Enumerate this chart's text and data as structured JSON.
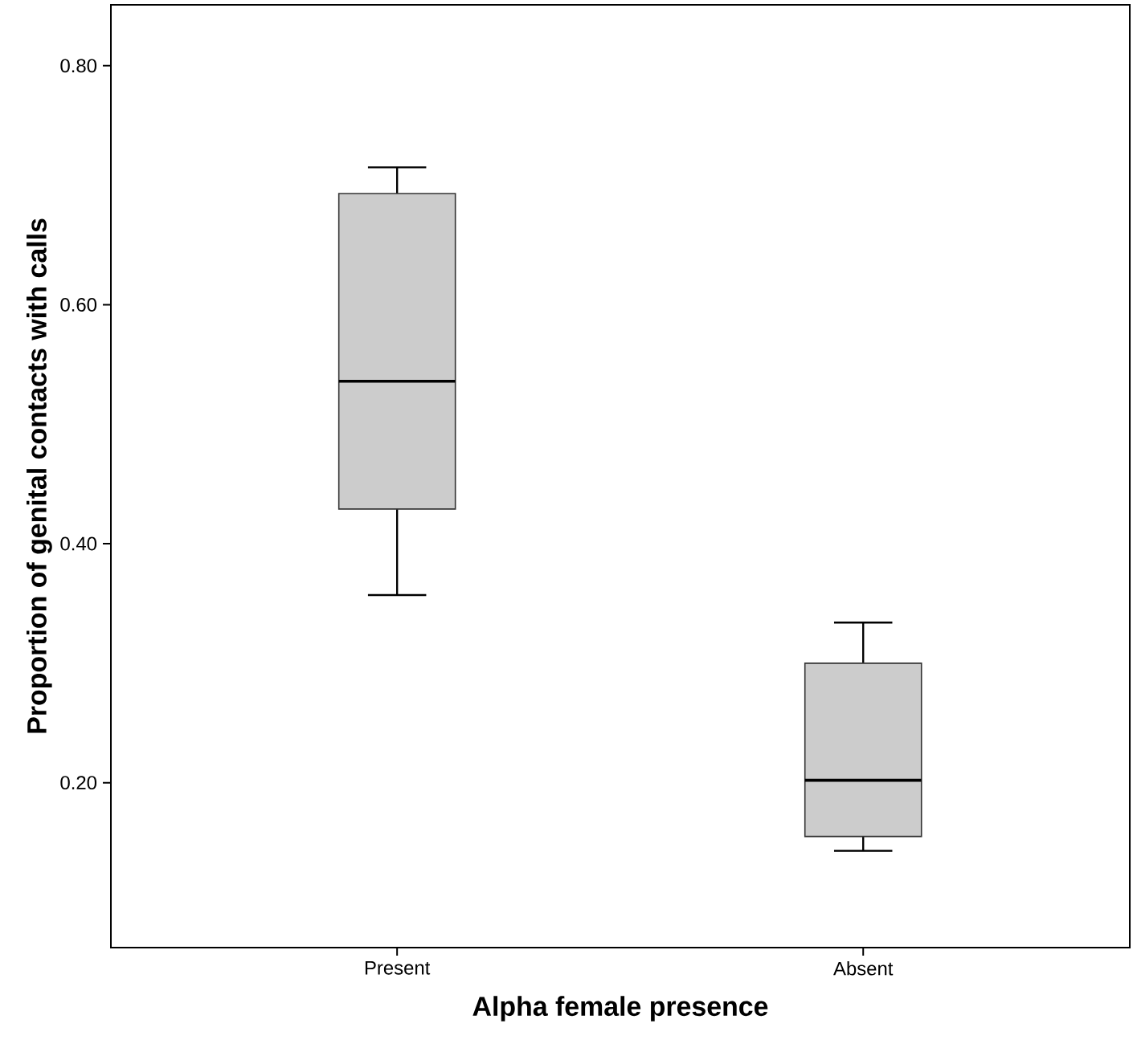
{
  "chart_data": {
    "type": "box",
    "xlabel": "Alpha female presence",
    "ylabel": "Proportion of genital contacts with calls",
    "categories": [
      "Present",
      "Absent"
    ],
    "boxes": [
      {
        "low": 0.357,
        "q1": 0.429,
        "median": 0.536,
        "q3": 0.693,
        "high": 0.715
      },
      {
        "low": 0.143,
        "q1": 0.155,
        "median": 0.202,
        "q3": 0.3,
        "high": 0.334
      }
    ],
    "color": "#cccccc",
    "ylim": [
      0.062,
      0.851
    ],
    "yticks": [
      {
        "value": 0.2,
        "label": "0.20"
      },
      {
        "value": 0.4,
        "label": "0.40"
      },
      {
        "value": 0.6,
        "label": "0.60"
      },
      {
        "value": 0.8,
        "label": "0.80"
      }
    ]
  }
}
